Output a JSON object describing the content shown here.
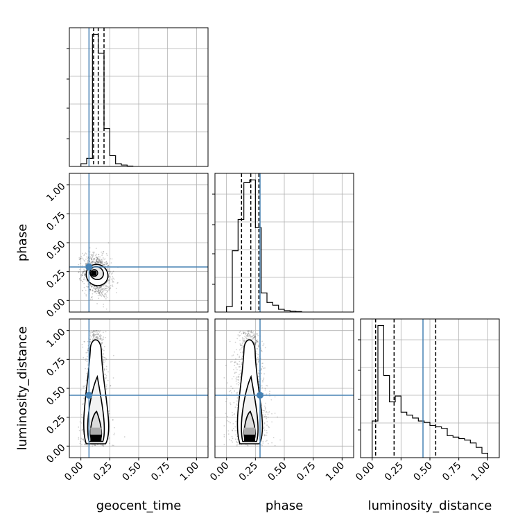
{
  "chart_data": {
    "type": "corner",
    "parameters": [
      "geocent_time",
      "phase",
      "luminosity_distance"
    ],
    "axis_range": [
      -0.1,
      1.1
    ],
    "ticks": [
      0.0,
      0.25,
      0.5,
      0.75,
      1.0
    ],
    "tick_labels": [
      "0.00",
      "0.25",
      "0.50",
      "0.75",
      "1.00"
    ],
    "xlabels": [
      "geocent_time",
      "phase",
      "luminosity_distance"
    ],
    "ylabels": [
      "",
      "phase",
      "luminosity_distance"
    ],
    "grid": true,
    "truths": {
      "geocent_time": 0.07,
      "phase": 0.29,
      "luminosity_distance": 0.44
    },
    "truth_color": "#4682b4",
    "quantiles": {
      "geocent_time": [
        0.11,
        0.15,
        0.2
      ],
      "phase": [
        0.13,
        0.21,
        0.28
      ],
      "luminosity_distance": [
        0.03,
        0.19,
        0.55
      ]
    },
    "histograms": {
      "geocent_time": {
        "edges": [
          0.0,
          0.05,
          0.1,
          0.15,
          0.2,
          0.25,
          0.3,
          0.35,
          0.4,
          0.45
        ],
        "counts": [
          2,
          6,
          98,
          84,
          28,
          8,
          2,
          1,
          0.3
        ]
      },
      "phase": {
        "edges": [
          0.0,
          0.05,
          0.1,
          0.15,
          0.2,
          0.25,
          0.3,
          0.35,
          0.4,
          0.45,
          0.5,
          0.55,
          0.6,
          0.65
        ],
        "counts": [
          4,
          45,
          68,
          95,
          97,
          62,
          14,
          7,
          5,
          2,
          1,
          0.6,
          0.3
        ]
      },
      "luminosity_distance": {
        "edges": [
          0.0,
          0.05,
          0.1,
          0.15,
          0.2,
          0.25,
          0.3,
          0.35,
          0.4,
          0.45,
          0.5,
          0.55,
          0.6,
          0.65,
          0.7,
          0.75,
          0.8,
          0.85,
          0.9,
          0.95,
          1.0
        ],
        "counts": [
          25,
          90,
          56,
          38,
          42,
          31,
          29,
          27,
          25,
          24,
          22,
          21,
          20,
          15,
          14,
          13,
          12,
          10,
          7,
          3
        ]
      }
    },
    "pairs": [
      {
        "x": "geocent_time",
        "y": "phase",
        "center": [
          0.14,
          0.22
        ],
        "spread": [
          0.06,
          0.09
        ],
        "tilt": -0.3
      },
      {
        "x": "geocent_time",
        "y": "luminosity_distance",
        "center": [
          0.13,
          0.35
        ],
        "spread": [
          0.055,
          0.3
        ],
        "tilt": 0.0
      },
      {
        "x": "phase",
        "y": "luminosity_distance",
        "center": [
          0.2,
          0.35
        ],
        "spread": [
          0.08,
          0.3
        ],
        "tilt": 0.0
      }
    ]
  }
}
